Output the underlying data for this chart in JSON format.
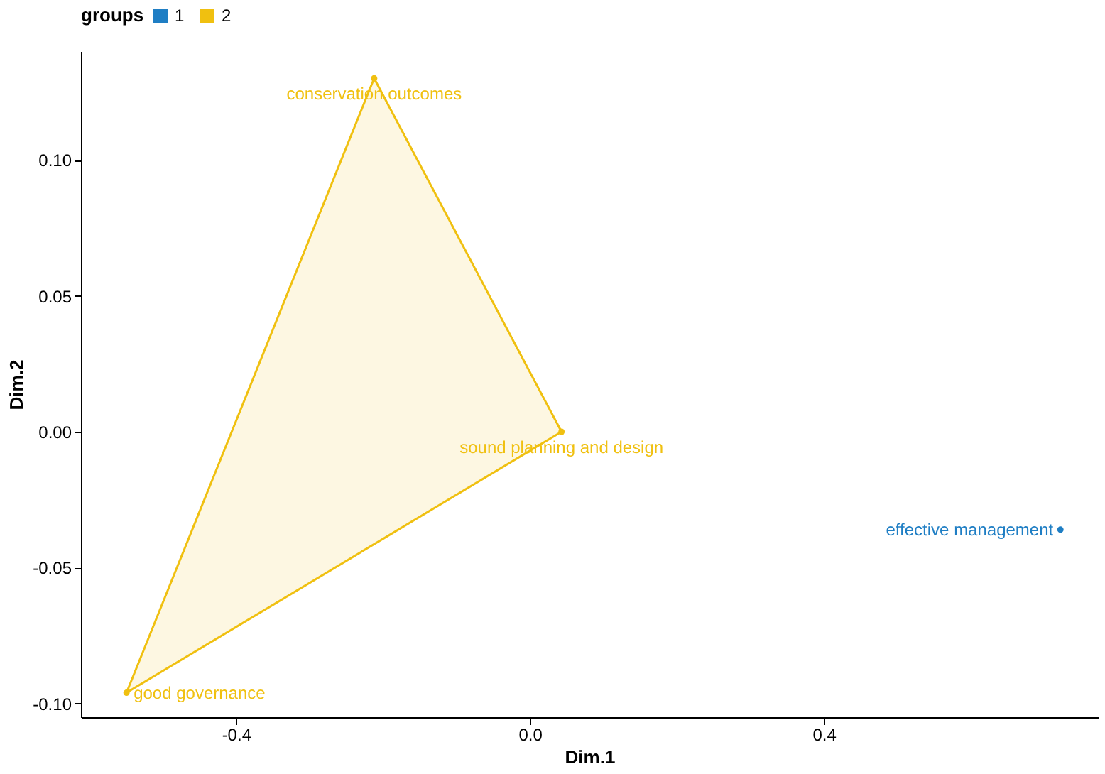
{
  "chart_data": {
    "type": "scatter",
    "xlabel": "Dim.1",
    "ylabel": "Dim.2",
    "legend_title": "groups",
    "legend": "top",
    "grid": false,
    "marker": "circle",
    "xlim": [
      -0.611,
      0.773
    ],
    "ylim": [
      -0.105,
      0.14
    ],
    "xticks": [
      {
        "value": -0.4,
        "label": "-0.4"
      },
      {
        "value": 0.0,
        "label": "0.0"
      },
      {
        "value": 0.4,
        "label": "0.4"
      }
    ],
    "yticks": [
      {
        "value": -0.1,
        "label": "-0.10"
      },
      {
        "value": -0.05,
        "label": "-0.05"
      },
      {
        "value": 0.0,
        "label": "0.00"
      },
      {
        "value": 0.05,
        "label": "0.05"
      },
      {
        "value": 0.1,
        "label": "0.10"
      }
    ],
    "series": [
      {
        "name": "1",
        "color": "#1f7ec4",
        "x": [
          0.722
        ],
        "values": [
          -0.036
        ]
      },
      {
        "name": "2",
        "color": "#f0c010",
        "x": [
          -0.212,
          0.043,
          -0.549
        ],
        "values": [
          0.13,
          0.0,
          -0.096
        ]
      },
      {
        "type": "area",
        "marker": "none",
        "color": "#f0c010",
        "x": [
          -0.212,
          0.043,
          -0.549,
          -0.212
        ],
        "values": [
          0.13,
          0.0,
          -0.096,
          0.13
        ]
      }
    ],
    "annotations": [
      {
        "text": "conservation outcomes",
        "x": -0.212,
        "y": 0.13
      },
      {
        "text": "sound planning and design",
        "x": 0.043,
        "y": 0.0
      },
      {
        "text": "good governance",
        "x": -0.549,
        "y": -0.096
      },
      {
        "text": "effective management",
        "x": 0.722,
        "y": -0.036
      }
    ]
  }
}
